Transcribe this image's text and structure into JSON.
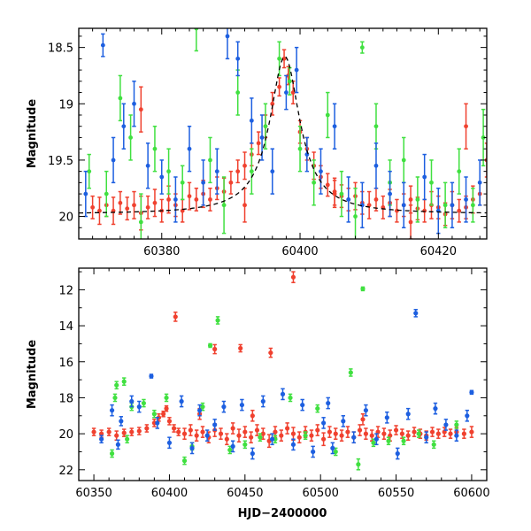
{
  "colors": {
    "red": "#f0412f",
    "green": "#40e040",
    "blue": "#1d5fe0",
    "model": "#000000"
  },
  "chart_data": [
    {
      "type": "scatter",
      "panel": "top",
      "xlabel": "",
      "ylabel": "Magnitude",
      "xlim": [
        60368,
        60427
      ],
      "ylim": [
        20.2,
        18.33
      ],
      "y_inverted": true,
      "grid": false,
      "x_ticks": [
        60380,
        60400,
        60420
      ],
      "x_ticklabels": [
        "60380",
        "60400",
        "60420"
      ],
      "y_ticks": [
        18.5,
        19,
        19.5,
        20
      ],
      "y_ticklabels": [
        "18.5",
        "19",
        "19.5",
        "20"
      ],
      "series": [
        {
          "color": "red",
          "x": [
            60370,
            60371,
            60372,
            60373,
            60374,
            60375,
            60376,
            60377,
            60378,
            60379,
            60380,
            60381,
            60382,
            60383,
            60384,
            60385,
            60386,
            60387,
            60388,
            60389,
            60390,
            60391,
            60392,
            60393,
            60394,
            60395,
            60396,
            60397,
            60397.7,
            60398.3,
            60399,
            60400,
            60401,
            60402,
            60403,
            60404,
            60405,
            60406,
            60407,
            60408,
            60409,
            60410,
            60411,
            60412,
            60413,
            60414,
            60415,
            60416,
            60417,
            60418,
            60419,
            60420,
            60421,
            60422,
            60423,
            60424,
            60425,
            60426,
            60427,
            60377,
            60392,
            60405,
            60416,
            60424
          ],
          "y": [
            19.92,
            19.95,
            19.9,
            19.95,
            19.88,
            19.93,
            19.9,
            19.97,
            19.92,
            19.88,
            19.95,
            19.85,
            19.9,
            19.95,
            19.82,
            19.85,
            19.8,
            19.85,
            19.75,
            19.78,
            19.7,
            19.6,
            19.55,
            19.45,
            19.35,
            19.2,
            19.0,
            18.85,
            18.6,
            18.75,
            18.9,
            19.25,
            19.4,
            19.55,
            19.65,
            19.72,
            19.78,
            19.82,
            19.85,
            19.82,
            19.88,
            19.9,
            19.85,
            19.92,
            19.88,
            19.95,
            19.9,
            19.85,
            19.93,
            19.95,
            19.9,
            19.92,
            19.98,
            19.9,
            19.95,
            19.92,
            19.85,
            19.8,
            19.5,
            19.05,
            19.9,
            19.8,
            20.05,
            19.2
          ],
          "err": [
            0.1,
            0.12,
            0.1,
            0.12,
            0.1,
            0.1,
            0.12,
            0.15,
            0.1,
            0.12,
            0.1,
            0.12,
            0.1,
            0.1,
            0.12,
            0.1,
            0.12,
            0.1,
            0.1,
            0.12,
            0.1,
            0.1,
            0.12,
            0.1,
            0.1,
            0.1,
            0.1,
            0.08,
            0.08,
            0.08,
            0.1,
            0.1,
            0.1,
            0.12,
            0.1,
            0.1,
            0.12,
            0.1,
            0.1,
            0.12,
            0.1,
            0.12,
            0.1,
            0.1,
            0.12,
            0.1,
            0.1,
            0.12,
            0.1,
            0.1,
            0.12,
            0.1,
            0.1,
            0.12,
            0.1,
            0.1,
            0.12,
            0.1,
            0.15,
            0.2,
            0.15,
            0.12,
            0.15,
            0.2
          ]
        },
        {
          "color": "green",
          "x": [
            60369.5,
            60372,
            60374,
            60375.5,
            60377,
            60379,
            60381,
            60383,
            60385,
            60387,
            60389,
            60391,
            60393,
            60395,
            60397,
            60398.5,
            60400,
            60402,
            60404,
            60406,
            60408,
            60409,
            60411,
            60413,
            60415,
            60417,
            60419,
            60421,
            60423,
            60425,
            60426.5
          ],
          "y": [
            19.6,
            19.8,
            18.95,
            19.3,
            20.05,
            19.4,
            19.6,
            19.7,
            18.33,
            19.5,
            19.9,
            18.9,
            19.6,
            19.2,
            18.6,
            18.8,
            19.4,
            19.7,
            19.1,
            19.8,
            20.0,
            18.5,
            19.2,
            19.7,
            19.5,
            19.85,
            19.7,
            19.9,
            19.6,
            19.9,
            19.3
          ],
          "err": [
            0.15,
            0.2,
            0.2,
            0.2,
            0.25,
            0.2,
            0.2,
            0.15,
            0.2,
            0.2,
            0.25,
            0.2,
            0.2,
            0.2,
            0.15,
            0.12,
            0.2,
            0.2,
            0.2,
            0.2,
            0.25,
            0.05,
            0.2,
            0.2,
            0.2,
            0.2,
            0.2,
            0.2,
            0.2,
            0.15,
            0.25
          ]
        },
        {
          "color": "blue",
          "x": [
            60369,
            60371.5,
            60373,
            60374.5,
            60376,
            60378,
            60380,
            60382,
            60384,
            60386,
            60388,
            60389.5,
            60391,
            60393,
            60394.5,
            60396,
            60398,
            60399.5,
            60401,
            60403,
            60405,
            60407,
            60409,
            60411,
            60413,
            60415,
            60418,
            60420,
            60422,
            60424,
            60426
          ],
          "y": [
            19.8,
            18.48,
            19.5,
            19.2,
            19.0,
            19.55,
            19.65,
            19.85,
            19.4,
            19.7,
            19.6,
            18.4,
            18.6,
            19.15,
            19.3,
            19.6,
            18.9,
            18.7,
            19.45,
            19.6,
            19.2,
            19.85,
            19.9,
            19.55,
            19.8,
            19.9,
            19.65,
            19.95,
            19.9,
            19.85,
            19.7
          ],
          "err": [
            0.2,
            0.1,
            0.2,
            0.2,
            0.2,
            0.2,
            0.15,
            0.2,
            0.2,
            0.2,
            0.2,
            0.2,
            0.15,
            0.2,
            0.2,
            0.2,
            0.15,
            0.2,
            0.15,
            0.2,
            0.2,
            0.2,
            0.2,
            0.2,
            0.2,
            0.2,
            0.2,
            0.2,
            0.2,
            0.2,
            0.2
          ]
        }
      ]
    },
    {
      "type": "scatter",
      "panel": "bottom",
      "xlabel": "HJD−2400000",
      "ylabel": "Magnitude",
      "xlim": [
        60340,
        60610
      ],
      "ylim": [
        22.6,
        10.8
      ],
      "y_inverted": true,
      "grid": false,
      "x_ticks": [
        60350,
        60400,
        60450,
        60500,
        60550,
        60600
      ],
      "x_ticklabels": [
        "60350",
        "60400",
        "60450",
        "60500",
        "60550",
        "60600"
      ],
      "y_ticks": [
        12,
        14,
        16,
        18,
        20,
        22
      ],
      "y_ticklabels": [
        "12",
        "14",
        "16",
        "18",
        "20",
        "22"
      ],
      "series": [
        {
          "color": "red",
          "x": [
            60350,
            60355,
            60360,
            60365,
            60370,
            60375,
            60380,
            60385,
            60390,
            60393,
            60396,
            60398,
            60400,
            60403,
            60406,
            60410,
            60414,
            60418,
            60422,
            60426,
            60430,
            60434,
            60438,
            60442,
            60446,
            60450,
            60454,
            60458,
            60462,
            60466,
            60470,
            60474,
            60478,
            60482,
            60486,
            60490,
            60494,
            60498,
            60502,
            60506,
            60510,
            60514,
            60518,
            60522,
            60526,
            60530,
            60534,
            60538,
            60542,
            60546,
            60550,
            60554,
            60558,
            60562,
            60566,
            60570,
            60574,
            60578,
            60582,
            60586,
            60590,
            60595,
            60600,
            60404,
            60430,
            60447,
            60467,
            60482,
            60528,
            60420,
            60455
          ],
          "y": [
            19.9,
            20.0,
            19.9,
            20.1,
            19.95,
            19.9,
            19.85,
            19.7,
            19.4,
            19.1,
            18.9,
            18.6,
            19.3,
            19.7,
            19.9,
            20.0,
            19.8,
            20.1,
            19.9,
            20.2,
            19.8,
            20.0,
            20.3,
            19.7,
            20.1,
            19.9,
            20.2,
            19.8,
            20.0,
            20.4,
            19.9,
            20.1,
            19.7,
            20.0,
            20.2,
            19.9,
            20.1,
            19.8,
            20.3,
            19.9,
            20.0,
            20.1,
            19.9,
            20.2,
            19.8,
            20.0,
            20.1,
            19.9,
            20.0,
            20.1,
            19.8,
            20.0,
            20.1,
            19.9,
            20.0,
            20.1,
            19.9,
            20.0,
            19.9,
            20.0,
            19.9,
            20.0,
            19.9,
            13.5,
            15.3,
            15.25,
            15.5,
            11.3,
            19.2,
            18.9,
            19.0
          ],
          "err": [
            0.2,
            0.2,
            0.2,
            0.25,
            0.2,
            0.2,
            0.2,
            0.2,
            0.2,
            0.2,
            0.15,
            0.15,
            0.2,
            0.2,
            0.2,
            0.3,
            0.3,
            0.3,
            0.3,
            0.3,
            0.35,
            0.3,
            0.3,
            0.3,
            0.35,
            0.3,
            0.3,
            0.3,
            0.3,
            0.35,
            0.3,
            0.3,
            0.3,
            0.35,
            0.3,
            0.3,
            0.3,
            0.3,
            0.35,
            0.3,
            0.3,
            0.3,
            0.3,
            0.3,
            0.3,
            0.3,
            0.3,
            0.3,
            0.3,
            0.3,
            0.25,
            0.25,
            0.25,
            0.25,
            0.25,
            0.25,
            0.25,
            0.25,
            0.25,
            0.25,
            0.25,
            0.25,
            0.3,
            0.25,
            0.25,
            0.2,
            0.25,
            0.3,
            0.3,
            0.3,
            0.3
          ]
        },
        {
          "color": "green",
          "x": [
            60362,
            60365,
            60370,
            60375,
            60383,
            60390,
            60398,
            60410,
            60415,
            60422,
            60427,
            60432,
            60440,
            60450,
            60460,
            60470,
            60480,
            60490,
            60498,
            60510,
            60520,
            60525,
            60528,
            60535,
            60545,
            60555,
            60565,
            60575,
            60590,
            60364,
            60372
          ],
          "y": [
            21.1,
            17.3,
            17.1,
            18.5,
            18.3,
            18.9,
            18.0,
            21.5,
            20.7,
            18.5,
            15.1,
            13.7,
            20.9,
            20.6,
            20.2,
            20.3,
            18.0,
            20.1,
            18.6,
            21.0,
            16.6,
            21.7,
            11.95,
            20.5,
            20.4,
            20.4,
            20.0,
            20.6,
            19.5,
            18.0,
            20.3
          ],
          "err": [
            0.2,
            0.2,
            0.2,
            0.2,
            0.2,
            0.2,
            0.2,
            0.2,
            0.2,
            0.2,
            0.1,
            0.2,
            0.2,
            0.2,
            0.2,
            0.2,
            0.2,
            0.2,
            0.2,
            0.2,
            0.2,
            0.3,
            0.1,
            0.2,
            0.2,
            0.2,
            0.2,
            0.2,
            0.2,
            0.2,
            0.2
          ]
        },
        {
          "color": "blue",
          "x": [
            60355,
            60362,
            60368,
            60375,
            60380,
            60388,
            60392,
            60400,
            60408,
            60415,
            60420,
            60425,
            60430,
            60436,
            60442,
            60448,
            60455,
            60462,
            60468,
            60475,
            60482,
            60488,
            60495,
            60502,
            60508,
            60515,
            60522,
            60530,
            60537,
            60544,
            60551,
            60558,
            60563,
            60570,
            60576,
            60583,
            60590,
            60597,
            60600,
            60366,
            60505
          ],
          "y": [
            20.3,
            18.7,
            19.3,
            18.2,
            18.5,
            16.8,
            19.4,
            20.5,
            18.2,
            20.8,
            18.7,
            20.1,
            19.5,
            18.5,
            20.7,
            18.4,
            21.1,
            18.2,
            20.3,
            17.8,
            20.6,
            18.4,
            21.0,
            19.4,
            20.8,
            19.3,
            20.2,
            18.7,
            20.3,
            19.1,
            21.1,
            18.9,
            13.3,
            20.2,
            18.6,
            19.5,
            20.1,
            19.0,
            17.7,
            20.6,
            18.3
          ],
          "err": [
            0.2,
            0.3,
            0.25,
            0.3,
            0.3,
            0.1,
            0.3,
            0.3,
            0.3,
            0.3,
            0.3,
            0.3,
            0.3,
            0.3,
            0.3,
            0.3,
            0.3,
            0.3,
            0.3,
            0.3,
            0.3,
            0.3,
            0.3,
            0.3,
            0.3,
            0.3,
            0.3,
            0.3,
            0.3,
            0.3,
            0.3,
            0.3,
            0.2,
            0.3,
            0.3,
            0.3,
            0.3,
            0.3,
            0.1,
            0.25,
            0.3
          ]
        }
      ]
    }
  ]
}
